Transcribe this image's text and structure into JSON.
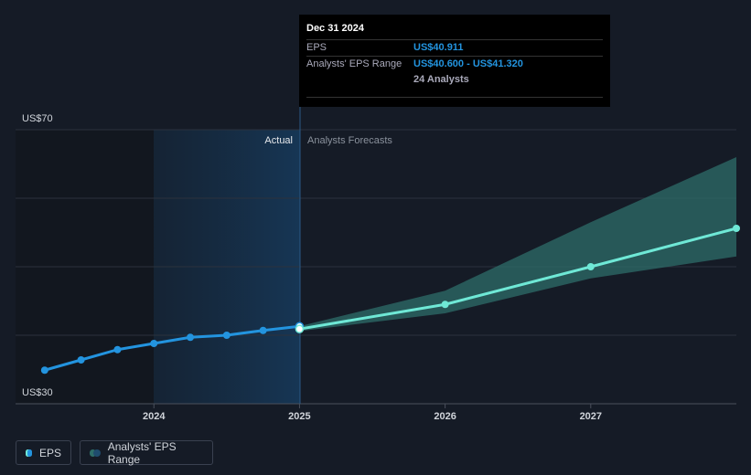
{
  "chart_data": {
    "type": "line",
    "xlim": [
      2023.05,
      2028
    ],
    "xticks": [
      2024,
      2025,
      2026,
      2027
    ],
    "ylim": [
      30,
      70
    ],
    "yticks": [
      {
        "value": 30,
        "label": "US$30"
      },
      {
        "value": 70,
        "label": "US$70"
      }
    ],
    "ygrid": [
      30,
      40,
      50,
      60,
      70
    ],
    "actual_label": "Actual",
    "forecast_label": "Analysts Forecasts",
    "series": [
      {
        "name": "EPS",
        "color": "#2394df",
        "x": [
          2023.25,
          2023.5,
          2023.75,
          2024,
          2024.25,
          2024.5,
          2024.75,
          2025
        ],
        "values": [
          34.9,
          36.4,
          37.9,
          38.8,
          39.7,
          40.0,
          40.7,
          41.3
        ]
      },
      {
        "color": "#6fe8d6",
        "x": [
          2025,
          2026,
          2027,
          2028
        ],
        "values": [
          40.911,
          44.5,
          50.0,
          55.6
        ]
      }
    ],
    "band": {
      "name": "Analysts' EPS Range",
      "color": "#2e6e69",
      "x": [
        2025,
        2026,
        2027,
        2028
      ],
      "low": [
        40.6,
        43.2,
        48.3,
        51.5
      ],
      "high": [
        41.32,
        46.5,
        56.5,
        66.0
      ]
    },
    "tooltip": {
      "date": "Dec 31 2024",
      "rows": [
        {
          "label": "EPS",
          "value": "US$40.911"
        },
        {
          "label": "Analysts' EPS Range",
          "value": "US$40.600 - US$41.320"
        },
        {
          "value": "24 Analysts"
        }
      ]
    }
  }
}
